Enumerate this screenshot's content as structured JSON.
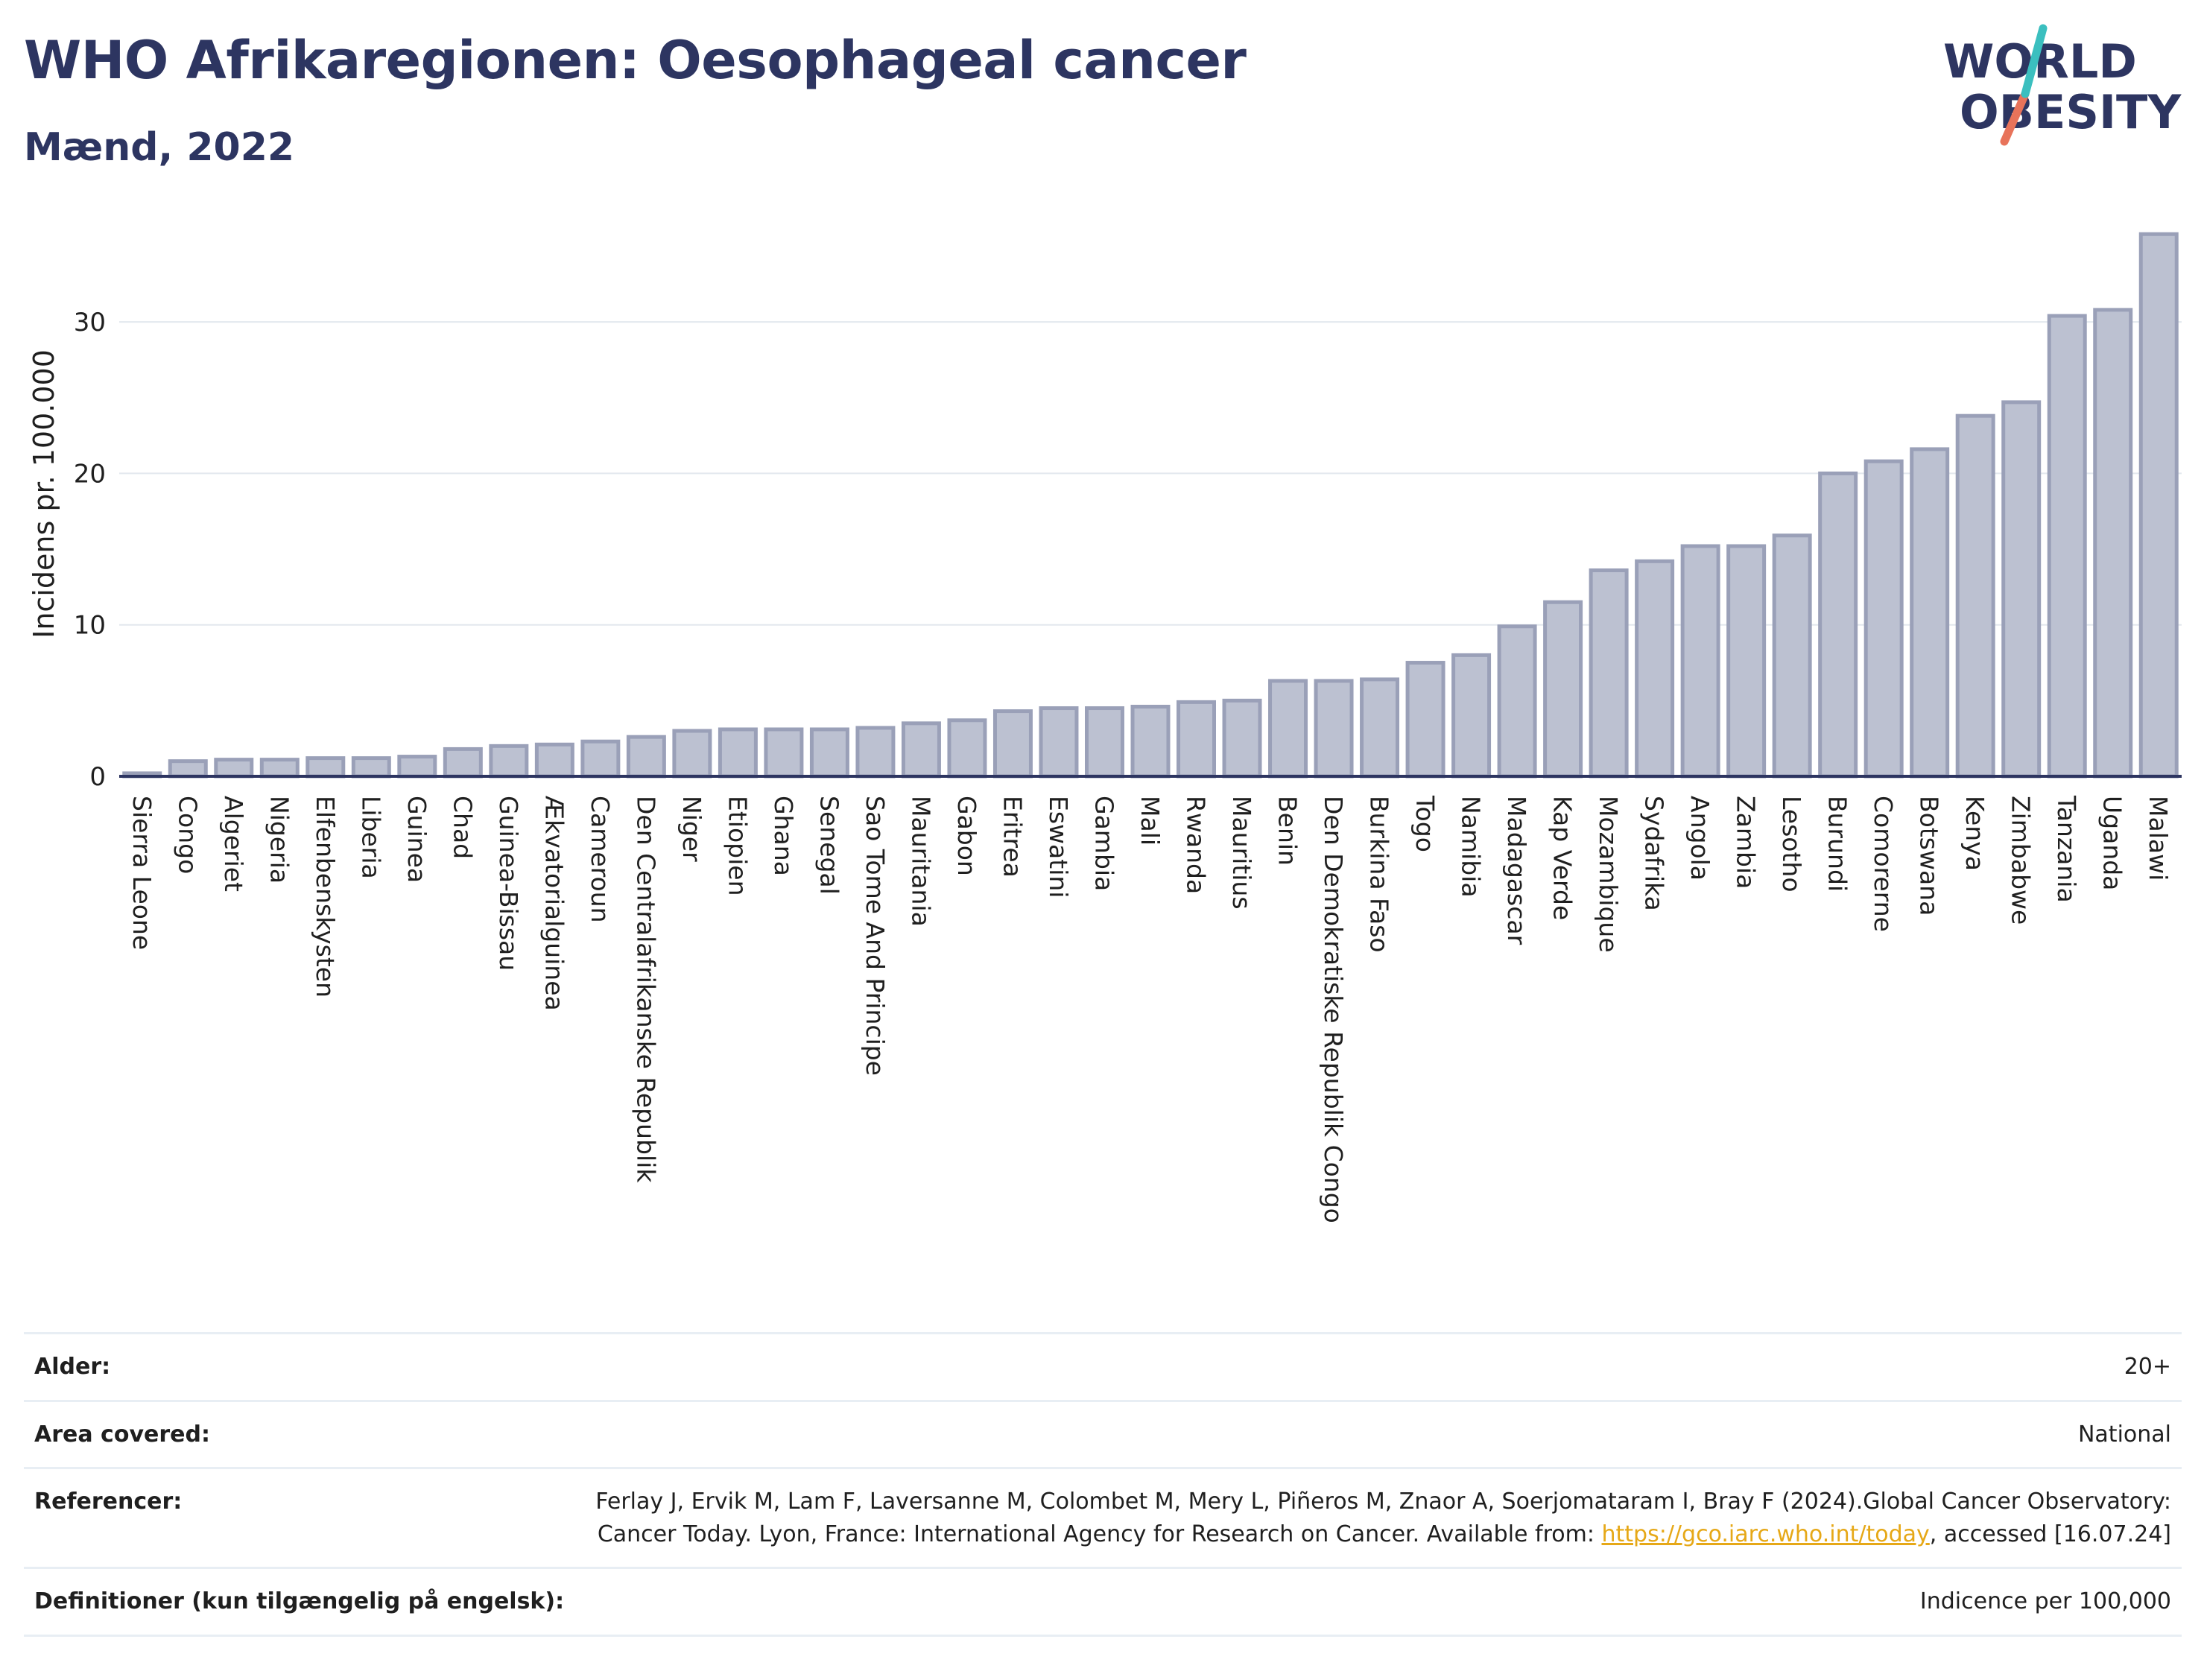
{
  "title": "WHO Afrikaregionen: Oesophageal cancer",
  "subtitle": "Mænd, 2022",
  "logo": {
    "line1": "WORLD",
    "line2": "OBESITY"
  },
  "colors": {
    "title": "#2d3561",
    "bar_fill": "#bcc1d1",
    "bar_stroke": "#9aa0b8",
    "axis": "#2d3561",
    "grid": "#e3e8ee",
    "link": "#e6a817",
    "logo_teal": "#3bbfbf",
    "logo_red": "#e8735a"
  },
  "chart_data": {
    "type": "bar",
    "ylabel": "Incidens pr. 100.000",
    "xlabel": "",
    "ylim": [
      0,
      36.5
    ],
    "yticks": [
      0,
      10,
      20,
      30
    ],
    "grid": true,
    "categories": [
      "Sierra Leone",
      "Congo",
      "Algeriet",
      "Nigeria",
      "Elfenbenskysten",
      "Liberia",
      "Guinea",
      "Chad",
      "Guinea-Bissau",
      "Ækvatorialguinea",
      "Cameroun",
      "Den Centralafrikanske Republik",
      "Niger",
      "Etiopien",
      "Ghana",
      "Senegal",
      "Sao Tome And Principe",
      "Mauritania",
      "Gabon",
      "Eritrea",
      "Eswatini",
      "Gambia",
      "Mali",
      "Rwanda",
      "Mauritius",
      "Benin",
      "Den Demokratiske Republik Congo",
      "Burkina Faso",
      "Togo",
      "Namibia",
      "Madagascar",
      "Kap Verde",
      "Mozambique",
      "Sydafrika",
      "Angola",
      "Zambia",
      "Lesotho",
      "Burundi",
      "Comorerne",
      "Botswana",
      "Kenya",
      "Zimbabwe",
      "Tanzania",
      "Uganda",
      "Malawi"
    ],
    "values": [
      0.2,
      1.0,
      1.1,
      1.1,
      1.2,
      1.2,
      1.3,
      1.8,
      2.0,
      2.1,
      2.3,
      2.6,
      3.0,
      3.1,
      3.1,
      3.1,
      3.2,
      3.5,
      3.7,
      4.3,
      4.5,
      4.5,
      4.6,
      4.9,
      5.0,
      6.3,
      6.3,
      6.4,
      7.5,
      8.0,
      9.9,
      11.5,
      13.6,
      14.2,
      15.2,
      15.2,
      15.9,
      20.0,
      20.8,
      21.6,
      23.8,
      24.7,
      30.4,
      30.8,
      35.8
    ]
  },
  "info": {
    "age_label": "Alder:",
    "age_value": "20+",
    "area_label": "Area covered:",
    "area_value": "National",
    "ref_label": "Referencer:",
    "ref_text_before": "Ferlay J, Ervik M, Lam F, Laversanne M, Colombet M, Mery L, Piñeros M, Znaor A, Soerjomataram I, Bray F (2024).Global Cancer Observatory: Cancer Today. Lyon, France: International Agency for Research on Cancer. Available from: ",
    "ref_link": "https://gco.iarc.who.int/today",
    "ref_text_after": ", accessed [16.07.24]",
    "def_label": "Definitioner (kun tilgængelig på engelsk):",
    "def_value": "Indicence per 100,000"
  }
}
